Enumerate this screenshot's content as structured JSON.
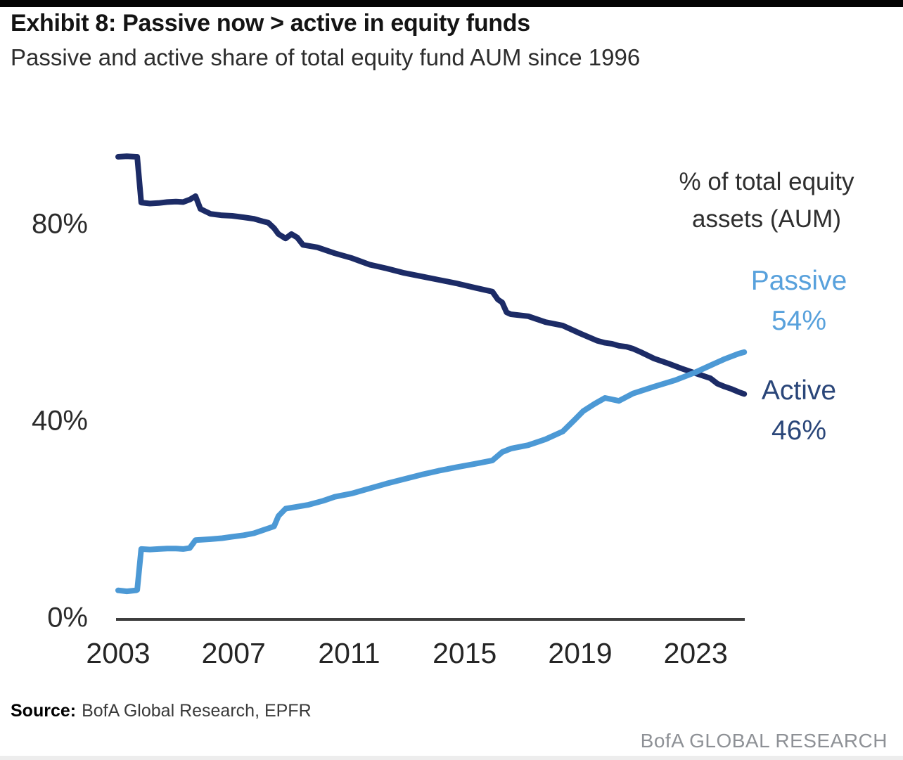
{
  "page": {
    "exhibit_title": "Exhibit 8: Passive now > active in equity funds",
    "subtitle": "Passive and active share of total equity fund AUM since 1996",
    "source_label": "Source:",
    "source_value": "BofA Global Research, EPFR",
    "brand_footer": "BofA GLOBAL RESEARCH"
  },
  "chart_data": {
    "type": "line",
    "title": "Exhibit 8: Passive now > active in equity funds",
    "subtitle": "Passive and active share of total equity fund AUM since 1996",
    "annotation": {
      "line1": "% of total equity",
      "line2": "assets (AUM)"
    },
    "grid": false,
    "legend_position": "right-end-labels",
    "x_axis": {
      "range": [
        2003,
        2024.7
      ],
      "ticks": [
        {
          "value": 2003,
          "label": "2003"
        },
        {
          "value": 2007,
          "label": "2007"
        },
        {
          "value": 2011,
          "label": "2011"
        },
        {
          "value": 2015,
          "label": "2015"
        },
        {
          "value": 2019,
          "label": "2019"
        },
        {
          "value": 2023,
          "label": "2023"
        }
      ]
    },
    "y_axis": {
      "range": [
        0,
        100
      ],
      "unit": "%",
      "ticks": [
        {
          "value": 80,
          "label": "80%"
        },
        {
          "value": 40,
          "label": "40%"
        },
        {
          "value": 0,
          "label": "0%"
        }
      ]
    },
    "series": [
      {
        "name": "Active",
        "end_label": "Active",
        "end_value_label": "46%",
        "color": "#1c2b66",
        "label_color": "#2a4679",
        "points": [
          [
            2003.0,
            94.0
          ],
          [
            2003.3,
            94.1
          ],
          [
            2003.62,
            94.0
          ],
          [
            2003.66,
            94.0
          ],
          [
            2003.8,
            84.7
          ],
          [
            2004.1,
            84.5
          ],
          [
            2004.4,
            84.6
          ],
          [
            2004.7,
            84.8
          ],
          [
            2005.0,
            84.9
          ],
          [
            2005.25,
            84.8
          ],
          [
            2005.48,
            85.3
          ],
          [
            2005.68,
            86.0
          ],
          [
            2005.85,
            83.4
          ],
          [
            2006.2,
            82.4
          ],
          [
            2006.6,
            82.1
          ],
          [
            2006.95,
            82.0
          ],
          [
            2007.35,
            81.7
          ],
          [
            2007.7,
            81.4
          ],
          [
            2008.0,
            80.9
          ],
          [
            2008.2,
            80.6
          ],
          [
            2008.4,
            79.5
          ],
          [
            2008.55,
            78.3
          ],
          [
            2008.8,
            77.4
          ],
          [
            2009.0,
            78.3
          ],
          [
            2009.2,
            77.6
          ],
          [
            2009.4,
            76.1
          ],
          [
            2009.9,
            75.6
          ],
          [
            2010.5,
            74.4
          ],
          [
            2011.1,
            73.4
          ],
          [
            2011.7,
            72.1
          ],
          [
            2012.3,
            71.3
          ],
          [
            2012.9,
            70.4
          ],
          [
            2013.5,
            69.7
          ],
          [
            2014.1,
            69.0
          ],
          [
            2014.7,
            68.3
          ],
          [
            2015.35,
            67.4
          ],
          [
            2015.96,
            66.6
          ],
          [
            2016.15,
            65.0
          ],
          [
            2016.3,
            64.4
          ],
          [
            2016.45,
            62.4
          ],
          [
            2016.6,
            62.0
          ],
          [
            2017.2,
            61.6
          ],
          [
            2017.8,
            60.4
          ],
          [
            2018.4,
            59.7
          ],
          [
            2019.0,
            58.1
          ],
          [
            2019.6,
            56.6
          ],
          [
            2019.86,
            56.2
          ],
          [
            2020.1,
            56.0
          ],
          [
            2020.34,
            55.6
          ],
          [
            2020.6,
            55.4
          ],
          [
            2020.83,
            55.0
          ],
          [
            2021.1,
            54.3
          ],
          [
            2021.56,
            53.0
          ],
          [
            2022.05,
            52.0
          ],
          [
            2022.5,
            51.0
          ],
          [
            2022.95,
            50.1
          ],
          [
            2023.51,
            49.0
          ],
          [
            2023.75,
            47.9
          ],
          [
            2024.0,
            47.3
          ],
          [
            2024.25,
            46.8
          ],
          [
            2024.49,
            46.2
          ],
          [
            2024.68,
            45.8
          ]
        ]
      },
      {
        "name": "Passive",
        "end_label": "Passive",
        "end_value_label": "54%",
        "color": "#4c99d5",
        "label_color": "#58a1dc",
        "points": [
          [
            2003.0,
            5.9
          ],
          [
            2003.3,
            5.7
          ],
          [
            2003.62,
            5.9
          ],
          [
            2003.66,
            6.0
          ],
          [
            2003.8,
            14.3
          ],
          [
            2004.1,
            14.2
          ],
          [
            2004.4,
            14.3
          ],
          [
            2004.7,
            14.4
          ],
          [
            2005.0,
            14.4
          ],
          [
            2005.25,
            14.3
          ],
          [
            2005.48,
            14.5
          ],
          [
            2005.68,
            16.1
          ],
          [
            2006.2,
            16.3
          ],
          [
            2006.6,
            16.5
          ],
          [
            2006.95,
            16.8
          ],
          [
            2007.35,
            17.1
          ],
          [
            2007.7,
            17.5
          ],
          [
            2008.0,
            18.1
          ],
          [
            2008.2,
            18.5
          ],
          [
            2008.4,
            18.9
          ],
          [
            2008.55,
            21.0
          ],
          [
            2008.8,
            22.5
          ],
          [
            2009.1,
            22.8
          ],
          [
            2009.6,
            23.3
          ],
          [
            2010.1,
            24.1
          ],
          [
            2010.5,
            24.9
          ],
          [
            2011.1,
            25.6
          ],
          [
            2011.7,
            26.6
          ],
          [
            2012.3,
            27.6
          ],
          [
            2012.9,
            28.5
          ],
          [
            2013.5,
            29.4
          ],
          [
            2014.1,
            30.2
          ],
          [
            2014.7,
            30.9
          ],
          [
            2015.35,
            31.6
          ],
          [
            2015.96,
            32.3
          ],
          [
            2016.3,
            34.0
          ],
          [
            2016.6,
            34.7
          ],
          [
            2017.2,
            35.4
          ],
          [
            2017.8,
            36.6
          ],
          [
            2018.4,
            38.2
          ],
          [
            2018.8,
            40.5
          ],
          [
            2019.1,
            42.3
          ],
          [
            2019.5,
            43.8
          ],
          [
            2019.86,
            45.0
          ],
          [
            2020.34,
            44.4
          ],
          [
            2020.83,
            45.9
          ],
          [
            2021.56,
            47.3
          ],
          [
            2022.29,
            48.6
          ],
          [
            2022.95,
            50.1
          ],
          [
            2023.51,
            51.6
          ],
          [
            2024.0,
            52.9
          ],
          [
            2024.49,
            54.0
          ],
          [
            2024.68,
            54.3
          ]
        ]
      }
    ]
  }
}
